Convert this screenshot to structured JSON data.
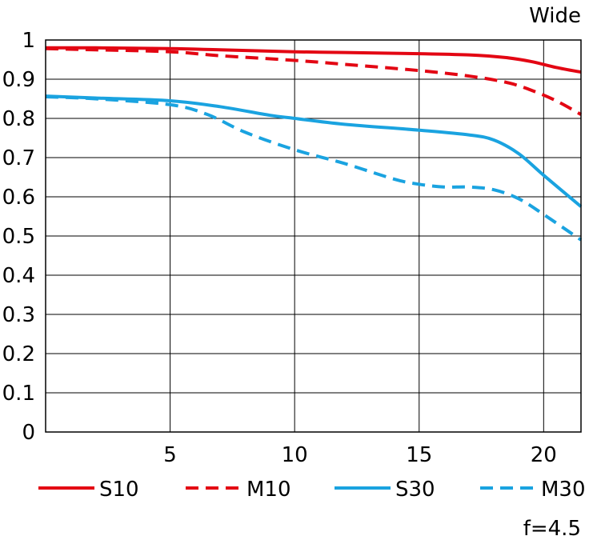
{
  "chart_data": {
    "type": "line",
    "title": "Wide",
    "subtitle": "f=4.5",
    "xlabel": "",
    "ylabel": "",
    "xlim": [
      0,
      21.5
    ],
    "ylim": [
      0,
      1
    ],
    "grid": true,
    "x_ticks": [
      5,
      10,
      15,
      20
    ],
    "x_tick_labels": [
      "5",
      "10",
      "15",
      "20"
    ],
    "y_ticks": [
      0,
      0.1,
      0.2,
      0.3,
      0.4,
      0.5,
      0.6,
      0.7,
      0.8,
      0.9,
      1
    ],
    "y_tick_labels": [
      "0",
      "0.1",
      "0.2",
      "0.3",
      "0.4",
      "0.5",
      "0.6",
      "0.7",
      "0.8",
      "0.9",
      "1"
    ],
    "legend_position": "bottom",
    "series": [
      {
        "name": "S10",
        "color": "#e30613",
        "dash": "solid",
        "x": [
          0,
          2,
          5,
          7,
          10,
          12,
          15,
          17,
          18.5,
          19.5,
          20.5,
          21.5
        ],
        "y": [
          0.98,
          0.98,
          0.978,
          0.975,
          0.97,
          0.968,
          0.965,
          0.962,
          0.955,
          0.945,
          0.93,
          0.918
        ]
      },
      {
        "name": "M10",
        "color": "#e30613",
        "dash": "dashed",
        "x": [
          0,
          2,
          5,
          7,
          10,
          12,
          15,
          17,
          18.5,
          19.5,
          20.5,
          21.5
        ],
        "y": [
          0.978,
          0.975,
          0.97,
          0.96,
          0.948,
          0.938,
          0.922,
          0.908,
          0.892,
          0.872,
          0.845,
          0.81
        ]
      },
      {
        "name": "S30",
        "color": "#1aa3e0",
        "dash": "solid",
        "x": [
          0,
          2,
          5,
          7,
          9,
          10,
          12,
          15,
          17,
          18,
          19,
          20,
          21.5
        ],
        "y": [
          0.857,
          0.852,
          0.845,
          0.83,
          0.808,
          0.8,
          0.785,
          0.77,
          0.758,
          0.745,
          0.71,
          0.655,
          0.575
        ]
      },
      {
        "name": "M30",
        "color": "#1aa3e0",
        "dash": "dashed",
        "x": [
          0,
          2,
          5,
          6.5,
          8,
          10,
          12,
          14,
          15,
          16,
          17,
          18,
          19,
          20,
          21.5
        ],
        "y": [
          0.855,
          0.85,
          0.835,
          0.81,
          0.765,
          0.72,
          0.685,
          0.645,
          0.632,
          0.625,
          0.625,
          0.618,
          0.595,
          0.555,
          0.49
        ]
      }
    ]
  }
}
